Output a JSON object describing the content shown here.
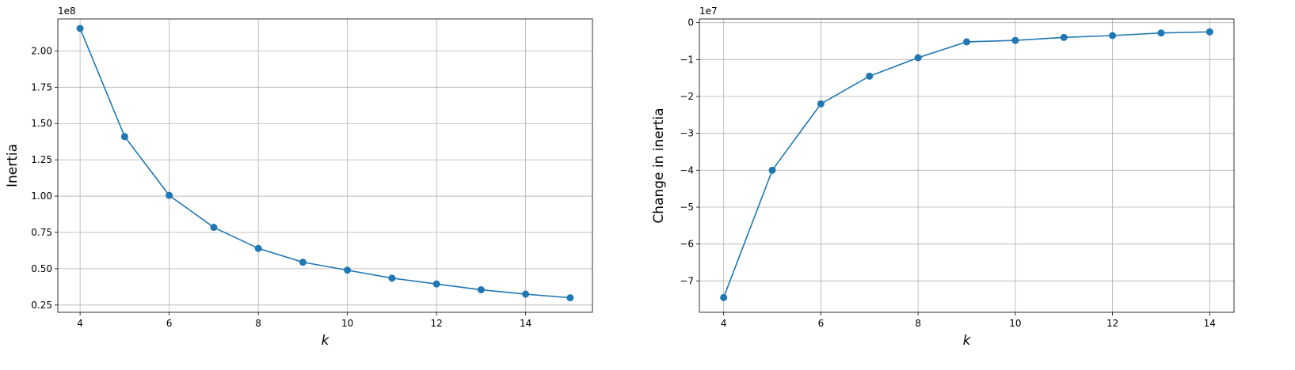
{
  "chart_data": [
    {
      "type": "line",
      "title": "",
      "xlabel": "k",
      "ylabel": "Inertia",
      "offset_label": "1e8",
      "xlim": [
        3.5,
        15.5
      ],
      "ylim": [
        0.2,
        2.22
      ],
      "xticks": [
        4,
        6,
        8,
        10,
        12,
        14
      ],
      "yticks": [
        0.25,
        0.5,
        0.75,
        1.0,
        1.25,
        1.5,
        1.75,
        2.0
      ],
      "ytick_labels": [
        "0.25",
        "0.50",
        "0.75",
        "1.00",
        "1.25",
        "1.50",
        "1.75",
        "2.00"
      ],
      "grid": true,
      "marker": "circle",
      "color": "#1f77b4",
      "series": [
        {
          "x": [
            4,
            5,
            6,
            7,
            8,
            9,
            10,
            11,
            12,
            13,
            14,
            15
          ],
          "y": [
            2.155,
            1.41,
            1.005,
            0.785,
            0.64,
            0.545,
            0.49,
            0.435,
            0.395,
            0.355,
            0.325,
            0.3
          ]
        }
      ]
    },
    {
      "type": "line",
      "title": "",
      "xlabel": "k",
      "ylabel": "Change in inertia",
      "offset_label": "1e7",
      "xlim": [
        3.5,
        14.5
      ],
      "ylim": [
        -7.85,
        0.1
      ],
      "xticks": [
        4,
        6,
        8,
        10,
        12,
        14
      ],
      "yticks": [
        -7,
        -6,
        -5,
        -4,
        -3,
        -2,
        -1,
        0
      ],
      "ytick_labels": [
        "−7",
        "−6",
        "−5",
        "−4",
        "−3",
        "−2",
        "−1",
        "0"
      ],
      "grid": true,
      "marker": "circle",
      "color": "#1f77b4",
      "series": [
        {
          "x": [
            4,
            5,
            6,
            7,
            8,
            9,
            10,
            11,
            12,
            13,
            14
          ],
          "y": [
            -7.45,
            -4.0,
            -2.2,
            -1.45,
            -0.95,
            -0.52,
            -0.48,
            -0.4,
            -0.35,
            -0.28,
            -0.25
          ]
        }
      ]
    }
  ]
}
